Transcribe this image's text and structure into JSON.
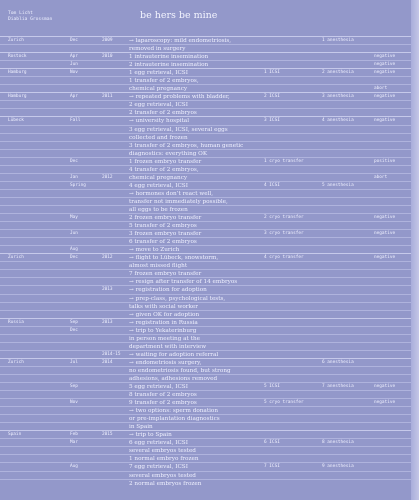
{
  "authors": [
    "Tom Licht",
    "Diablia Grossman"
  ],
  "title": "be hers be mine",
  "rows": [
    {
      "place": "Zurich",
      "month": "Dec",
      "year": "2009",
      "event": "→ laparoscopy: mild endometriosis,",
      "icsi": "",
      "anes": "1 anesthesia",
      "res": "",
      "line": "sep"
    },
    {
      "place": "",
      "month": "",
      "year": "",
      "event": "removed in surgery",
      "icsi": "",
      "anes": "",
      "res": "",
      "line": "thin"
    },
    {
      "place": "Rostock",
      "month": "Apr",
      "year": "2010",
      "event": "1  intrauterine insemination",
      "icsi": "",
      "anes": "",
      "res": "negative",
      "line": "sep"
    },
    {
      "place": "",
      "month": "Jun",
      "year": "",
      "event": "2  intrauterine insemination",
      "icsi": "",
      "anes": "",
      "res": "negative",
      "line": "thin"
    },
    {
      "place": "Hamburg",
      "month": "Nov",
      "year": "",
      "event": "1  egg retrieval, ICSI",
      "icsi": "1 ICSI",
      "anes": "2 anesthesia",
      "res": "negative",
      "line": "sep"
    },
    {
      "place": "",
      "month": "",
      "year": "",
      "event": "1  transfer of 2 embryos,",
      "icsi": "",
      "anes": "",
      "res": "",
      "line": "thin"
    },
    {
      "place": "",
      "month": "",
      "year": "",
      "event": "chemical pregnancy",
      "icsi": "",
      "anes": "",
      "res": "abort",
      "line": "thin"
    },
    {
      "place": "Hamburg",
      "month": "Apr",
      "year": "2011",
      "event": "→ repeated problems with bladder,",
      "icsi": "2 ICSI",
      "anes": "3 anesthesia",
      "res": "negative",
      "line": "sep"
    },
    {
      "place": "",
      "month": "",
      "year": "",
      "event": "2  egg retrieval, ICSI",
      "icsi": "",
      "anes": "",
      "res": "",
      "line": "thin"
    },
    {
      "place": "",
      "month": "",
      "year": "",
      "event": "2  transfer of 2 embryos",
      "icsi": "",
      "anes": "",
      "res": "",
      "line": "thin"
    },
    {
      "place": "Lübeck",
      "month": "Fall",
      "year": "",
      "event": "→ university hospital",
      "icsi": "3 ICSI",
      "anes": "4 anesthesia",
      "res": "negative",
      "line": "sep"
    },
    {
      "place": "",
      "month": "",
      "year": "",
      "event": "3  egg retrieval, ICSI, several eggs",
      "icsi": "",
      "anes": "",
      "res": "",
      "line": "thin"
    },
    {
      "place": "",
      "month": "",
      "year": "",
      "event": "collected and frozen",
      "icsi": "",
      "anes": "",
      "res": "",
      "line": "thin"
    },
    {
      "place": "",
      "month": "",
      "year": "",
      "event": "3  transfer of 2 embryos, human genetic",
      "icsi": "",
      "anes": "",
      "res": "",
      "line": "thin"
    },
    {
      "place": "",
      "month": "",
      "year": "",
      "event": "diagnostics: everything OK",
      "icsi": "",
      "anes": "",
      "res": "",
      "line": "thin"
    },
    {
      "place": "",
      "month": "Dec",
      "year": "",
      "event": "1  frozen embryo transfer",
      "icsi": "1 cryo transfer",
      "anes": "",
      "res": "positive",
      "line": "thin"
    },
    {
      "place": "",
      "month": "",
      "year": "",
      "event": "4  transfer of 2 embryos,",
      "icsi": "",
      "anes": "",
      "res": "",
      "line": "thin"
    },
    {
      "place": "",
      "month": "Jan",
      "year": "2012",
      "event": "chemical pregnancy",
      "icsi": "",
      "anes": "",
      "res": "abort",
      "line": "thin"
    },
    {
      "place": "",
      "month": "Spring",
      "year": "",
      "event": "4  egg retrieval, ICSI",
      "icsi": "4 ICSI",
      "anes": "5 anesthesia",
      "res": "",
      "line": "thin"
    },
    {
      "place": "",
      "month": "",
      "year": "",
      "event": "→ hormones don’t react well,",
      "icsi": "",
      "anes": "",
      "res": "",
      "line": "thin"
    },
    {
      "place": "",
      "month": "",
      "year": "",
      "event": "transfer not immediately possible,",
      "icsi": "",
      "anes": "",
      "res": "",
      "line": "thin"
    },
    {
      "place": "",
      "month": "",
      "year": "",
      "event": "all eggs to be frozen",
      "icsi": "",
      "anes": "",
      "res": "",
      "line": "thin"
    },
    {
      "place": "",
      "month": "May",
      "year": "",
      "event": "2  frozen embryo transfer",
      "icsi": "2 cryo transfer",
      "anes": "",
      "res": "negative",
      "line": "thin"
    },
    {
      "place": "",
      "month": "",
      "year": "",
      "event": "5  transfer of 2 embryos",
      "icsi": "",
      "anes": "",
      "res": "",
      "line": "thin"
    },
    {
      "place": "",
      "month": "Jun",
      "year": "",
      "event": "3  frozen embryo transfer",
      "icsi": "3 cryo transfer",
      "anes": "",
      "res": "negative",
      "line": "thin"
    },
    {
      "place": "",
      "month": "",
      "year": "",
      "event": "6  transfer of 2 embryos",
      "icsi": "",
      "anes": "",
      "res": "",
      "line": "thin"
    },
    {
      "place": "",
      "month": "Aug",
      "year": "",
      "event": "→ move to Zurich",
      "icsi": "",
      "anes": "",
      "res": "",
      "line": "thin"
    },
    {
      "place": "Zurich",
      "month": "Dec",
      "year": "2012",
      "event": "→ flight to Lübeck, snowstorm,",
      "icsi": "4 cryo transfer",
      "anes": "",
      "res": "negative",
      "line": "sep"
    },
    {
      "place": "",
      "month": "",
      "year": "",
      "event": "almost missed flight",
      "icsi": "",
      "anes": "",
      "res": "",
      "line": "thin"
    },
    {
      "place": "",
      "month": "",
      "year": "",
      "event": "7  frozen embryo transfer",
      "icsi": "",
      "anes": "",
      "res": "",
      "line": "thin"
    },
    {
      "place": "",
      "month": "",
      "year": "",
      "event": "→ resign after transfer of 14 embryos",
      "icsi": "",
      "anes": "",
      "res": "",
      "line": "thin"
    },
    {
      "place": "",
      "month": "",
      "year": "2013",
      "event": "→ registration for adoption",
      "icsi": "",
      "anes": "",
      "res": "",
      "line": "thin"
    },
    {
      "place": "",
      "month": "",
      "year": "",
      "event": "→ prep-class, psychological tests,",
      "icsi": "",
      "anes": "",
      "res": "",
      "line": "thin"
    },
    {
      "place": "",
      "month": "",
      "year": "",
      "event": "talks with social worker",
      "icsi": "",
      "anes": "",
      "res": "",
      "line": "thin"
    },
    {
      "place": "",
      "month": "",
      "year": "",
      "event": "→ given OK for adoption",
      "icsi": "",
      "anes": "",
      "res": "",
      "line": "thin"
    },
    {
      "place": "Russia",
      "month": "Sep",
      "year": "2013",
      "event": "→ registration in Russia",
      "icsi": "",
      "anes": "",
      "res": "",
      "line": "sep"
    },
    {
      "place": "",
      "month": "Dec",
      "year": "",
      "event": "→ trip to Yekaterinburg",
      "icsi": "",
      "anes": "",
      "res": "",
      "line": "thin"
    },
    {
      "place": "",
      "month": "",
      "year": "",
      "event": "in person meeting at the",
      "icsi": "",
      "anes": "",
      "res": "",
      "line": "thin"
    },
    {
      "place": "",
      "month": "",
      "year": "",
      "event": "department with interview",
      "icsi": "",
      "anes": "",
      "res": "",
      "line": "thin"
    },
    {
      "place": "",
      "month": "",
      "year": "2014-15",
      "event": "→ waiting for adoption referral",
      "icsi": "",
      "anes": "",
      "res": "",
      "line": "thin"
    },
    {
      "place": "Zurich",
      "month": "Jul",
      "year": "2014",
      "event": "→ endometriosis surgery,",
      "icsi": "",
      "anes": "6 anesthesia",
      "res": "",
      "line": "sep"
    },
    {
      "place": "",
      "month": "",
      "year": "",
      "event": "no endometriosis found, but strong",
      "icsi": "",
      "anes": "",
      "res": "",
      "line": "thin"
    },
    {
      "place": "",
      "month": "",
      "year": "",
      "event": "adhesions, adhesions removed",
      "icsi": "",
      "anes": "",
      "res": "",
      "line": "thin"
    },
    {
      "place": "",
      "month": "Sep",
      "year": "",
      "event": "5  egg retrieval, ICSI",
      "icsi": "5 ICSI",
      "anes": "7 anesthesia",
      "res": "negative",
      "line": "thin"
    },
    {
      "place": "",
      "month": "",
      "year": "",
      "event": "8  transfer of 2 embryos",
      "icsi": "",
      "anes": "",
      "res": "",
      "line": "thin"
    },
    {
      "place": "",
      "month": "Nov",
      "year": "",
      "event": "9  transfer of 2 embryos",
      "icsi": "5 cryo transfer",
      "anes": "",
      "res": "negative",
      "line": "thin"
    },
    {
      "place": "",
      "month": "",
      "year": "",
      "event": "→ two options: sperm donation",
      "icsi": "",
      "anes": "",
      "res": "",
      "line": "thin"
    },
    {
      "place": "",
      "month": "",
      "year": "",
      "event": "or pre-implantation diagnostics",
      "icsi": "",
      "anes": "",
      "res": "",
      "line": "thin"
    },
    {
      "place": "",
      "month": "",
      "year": "",
      "event": "in Spain",
      "icsi": "",
      "anes": "",
      "res": "",
      "line": "thin"
    },
    {
      "place": "Spain",
      "month": "Feb",
      "year": "2015",
      "event": "→ trip to Spain",
      "icsi": "",
      "anes": "",
      "res": "",
      "line": "sep"
    },
    {
      "place": "",
      "month": "Mar",
      "year": "",
      "event": "6  egg retrieval, ICSI",
      "icsi": "6 ICSI",
      "anes": "8 anesthesia",
      "res": "",
      "line": "thin"
    },
    {
      "place": "",
      "month": "",
      "year": "",
      "event": "several embryos tested",
      "icsi": "",
      "anes": "",
      "res": "",
      "line": "thin"
    },
    {
      "place": "",
      "month": "",
      "year": "",
      "event": "1 normal embryo frozen",
      "icsi": "",
      "anes": "",
      "res": "",
      "line": "thin"
    },
    {
      "place": "",
      "month": "Aug",
      "year": "",
      "event": "7  egg retrieval, ICSI",
      "icsi": "7 ICSI",
      "anes": "9 anesthesia",
      "res": "",
      "line": "thin"
    },
    {
      "place": "",
      "month": "",
      "year": "",
      "event": "several embryos tested",
      "icsi": "",
      "anes": "",
      "res": "",
      "line": "thin"
    },
    {
      "place": "",
      "month": "",
      "year": "",
      "event": "2 normal embryos frozen",
      "icsi": "",
      "anes": "",
      "res": "",
      "line": "thin"
    }
  ]
}
